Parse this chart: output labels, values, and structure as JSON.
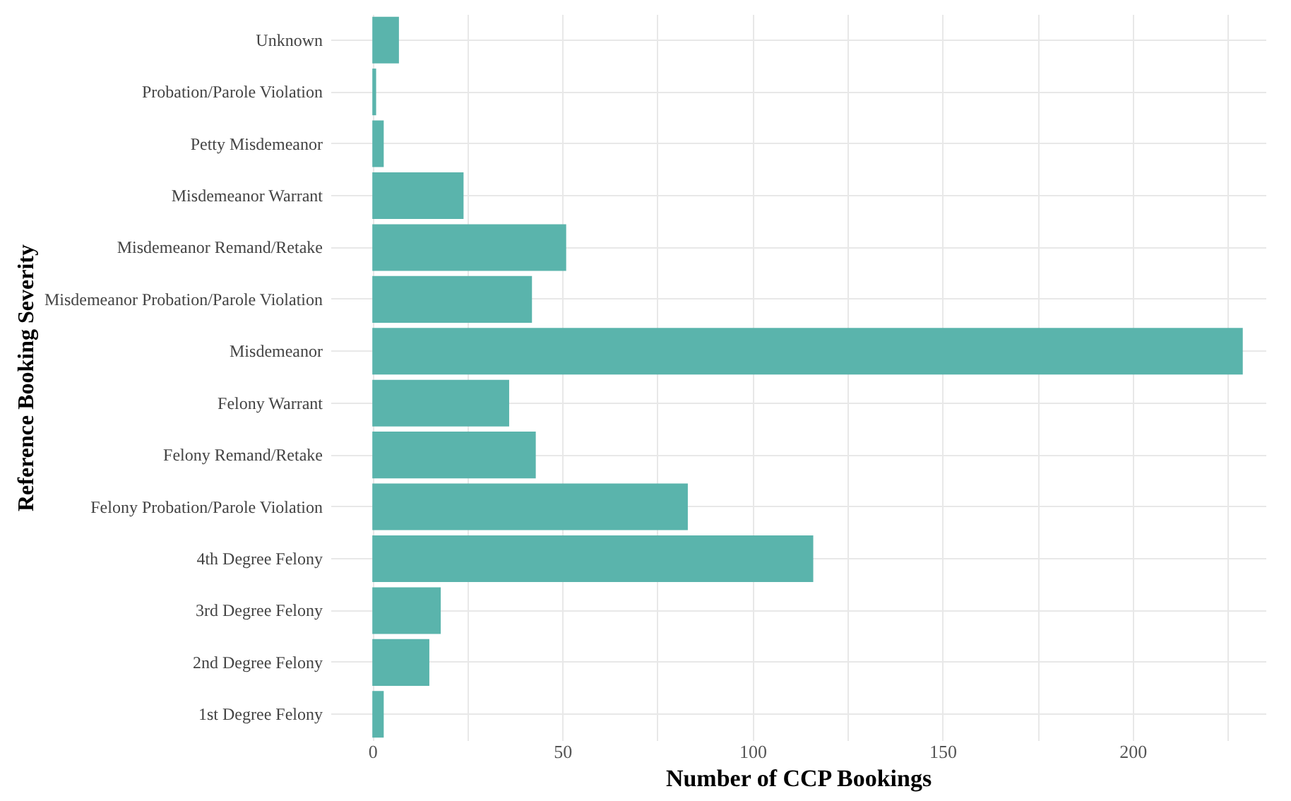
{
  "chart_data": {
    "type": "bar",
    "orientation": "horizontal",
    "xlabel": "Number of CCP Bookings",
    "ylabel": "Reference Booking Severity",
    "categories": [
      "Unknown",
      "Probation/Parole Violation",
      "Petty Misdemeanor",
      "Misdemeanor Warrant",
      "Misdemeanor Remand/Retake",
      "Misdemeanor Probation/Parole Violation",
      "Misdemeanor",
      "Felony Warrant",
      "Felony Remand/Retake",
      "Felony Probation/Parole Violation",
      "4th Degree Felony",
      "3rd Degree Felony",
      "2nd Degree Felony",
      "1st Degree Felony"
    ],
    "values": [
      7,
      1,
      3,
      24,
      51,
      42,
      229,
      36,
      43,
      83,
      116,
      18,
      15,
      3
    ],
    "color": "#5ab4ac",
    "xlim": [
      -11,
      235
    ],
    "xticks": [
      0,
      {
        "value": 25,
        "label": null
      },
      50,
      {
        "value": 75,
        "label": null
      },
      100,
      {
        "value": 125,
        "label": null
      },
      150,
      {
        "value": 175,
        "label": null
      },
      200,
      {
        "value": 225,
        "label": null
      }
    ],
    "grid": true
  }
}
